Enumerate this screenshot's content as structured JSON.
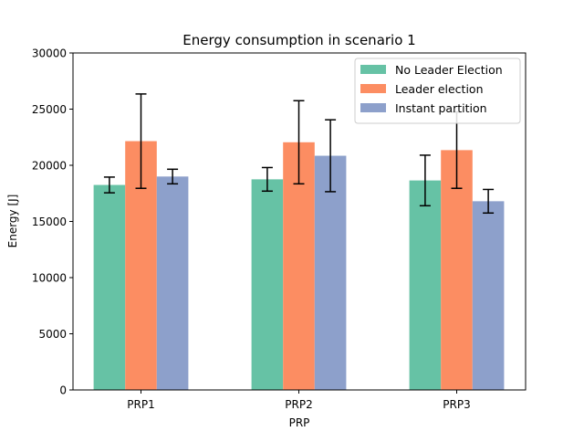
{
  "chart_data": {
    "type": "bar",
    "title": "Energy consumption in scenario 1",
    "xlabel": "PRP",
    "ylabel": "Energy [J]",
    "categories": [
      "PRP1",
      "PRP2",
      "PRP3"
    ],
    "ylim": [
      0,
      30000
    ],
    "yticks": [
      0,
      5000,
      10000,
      15000,
      20000,
      25000,
      30000
    ],
    "grid": false,
    "legend_position": "top-right",
    "series": [
      {
        "name": "No Leader Election",
        "color": "#66c2a5",
        "values": [
          18250,
          18750,
          18650
        ],
        "errors": [
          700,
          1050,
          2250
        ]
      },
      {
        "name": "Leader election",
        "color": "#fc8d62",
        "values": [
          22150,
          22050,
          21350
        ],
        "errors": [
          4200,
          3700,
          3400
        ]
      },
      {
        "name": "Instant partition",
        "color": "#8da0cb",
        "values": [
          19000,
          20850,
          16800
        ],
        "errors": [
          650,
          3200,
          1050
        ]
      }
    ]
  }
}
